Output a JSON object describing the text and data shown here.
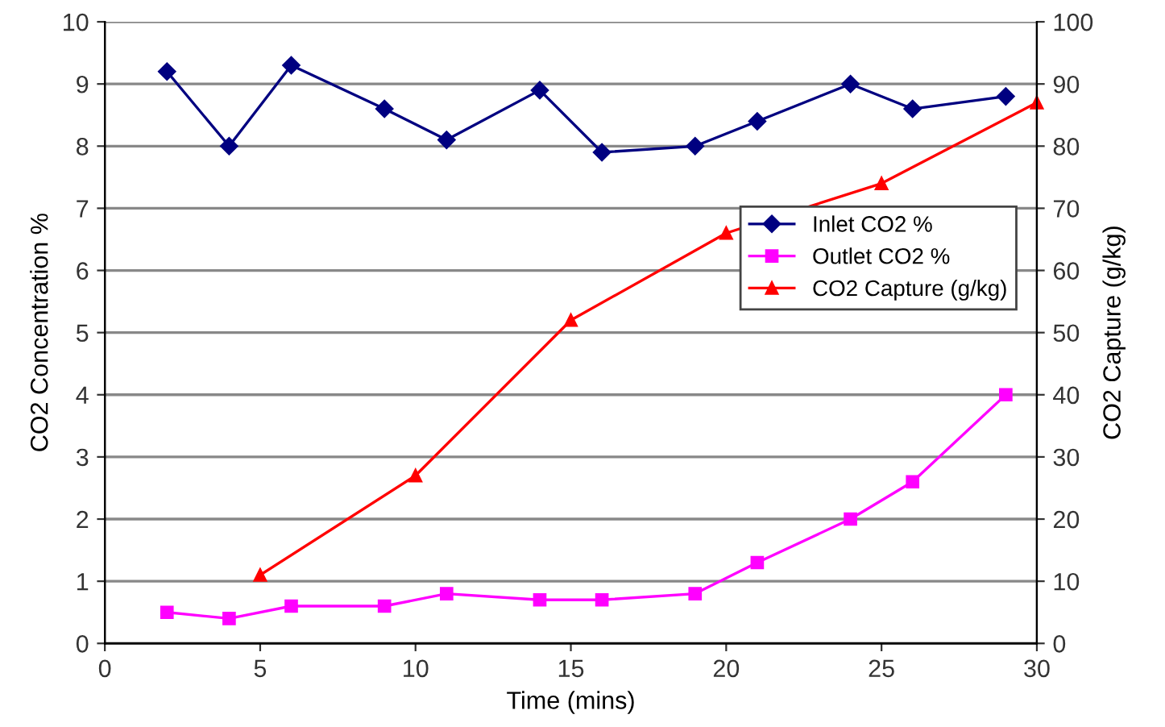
{
  "chart_data": {
    "type": "line",
    "xlabel": "Time (mins)",
    "ylabel": "CO2 Concentration %",
    "y2label": "CO2 Capture (g/kg)",
    "xlim": [
      0,
      30
    ],
    "xticks": [
      0,
      5,
      10,
      15,
      20,
      25,
      30
    ],
    "ylim": [
      0,
      10
    ],
    "yticks": [
      0,
      1,
      2,
      3,
      4,
      5,
      6,
      7,
      8,
      9,
      10
    ],
    "y2lim": [
      0,
      100
    ],
    "y2ticks": [
      0,
      10,
      20,
      30,
      40,
      50,
      60,
      70,
      80,
      90,
      100
    ],
    "grid": "y",
    "legend": "center right",
    "line_style": "solid",
    "series": [
      {
        "name": "Inlet CO2 %",
        "color": "#000080",
        "marker": "diamond",
        "x": [
          2,
          4,
          6,
          9,
          11,
          14,
          16,
          19,
          21,
          24,
          26,
          29
        ],
        "values": [
          9.2,
          8.0,
          9.3,
          8.6,
          8.1,
          8.9,
          7.9,
          8.0,
          8.4,
          9.0,
          8.6,
          8.8
        ]
      },
      {
        "name": "Outlet CO2 %",
        "color": "#ff00ff",
        "marker": "square",
        "x": [
          2,
          4,
          6,
          9,
          11,
          14,
          16,
          19,
          21,
          24,
          26,
          29
        ],
        "values": [
          0.5,
          0.4,
          0.6,
          0.6,
          0.8,
          0.7,
          0.7,
          0.8,
          1.3,
          2.0,
          2.6,
          4.0
        ]
      },
      {
        "name": "CO2 Capture (g/kg)",
        "color": "#ff0000",
        "marker": "triangle",
        "axis": "y2",
        "x": [
          5,
          10,
          15,
          20,
          25,
          30
        ],
        "values": [
          11,
          27,
          52,
          66,
          74,
          87
        ]
      }
    ]
  }
}
